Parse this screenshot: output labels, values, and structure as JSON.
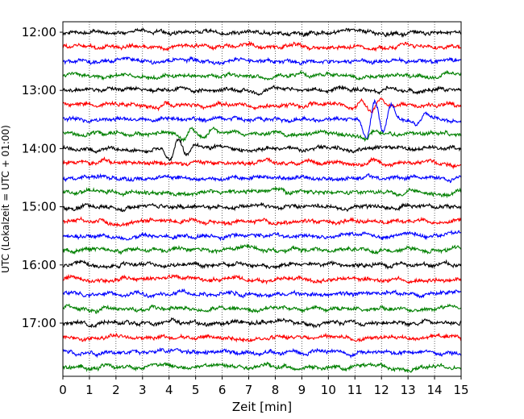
{
  "chart_data": {
    "type": "line",
    "title": "",
    "xlabel": "Zeit  [min]",
    "ylabel": "UTC (Lokalzeit = UTC + 01:00)",
    "xlim": [
      0,
      15
    ],
    "x_ticks": [
      "0",
      "1",
      "2",
      "3",
      "4",
      "5",
      "6",
      "7",
      "8",
      "9",
      "10",
      "11",
      "12",
      "13",
      "14",
      "15"
    ],
    "y_tick_labels": [
      "12:00",
      "13:00",
      "14:00",
      "15:00",
      "16:00",
      "17:00"
    ],
    "grid": "vertical-dotted",
    "trace_interval_min": 15,
    "start_time": "12:00",
    "trace_colors": [
      "#000000",
      "#ff0000",
      "#0000ff",
      "#008000"
    ],
    "traces": [
      {
        "start": "12:00",
        "color": "#000000"
      },
      {
        "start": "12:15",
        "color": "#ff0000"
      },
      {
        "start": "12:30",
        "color": "#0000ff"
      },
      {
        "start": "12:45",
        "color": "#008000"
      },
      {
        "start": "13:00",
        "color": "#000000"
      },
      {
        "start": "13:15",
        "color": "#ff0000",
        "events": [
          {
            "t": 3.7,
            "amp": 0.5
          },
          {
            "t": 11.1,
            "amp": 0.6
          },
          {
            "t": 11.8,
            "amp": 0.8
          }
        ]
      },
      {
        "start": "13:30",
        "color": "#0000ff",
        "events": [
          {
            "t": 11.6,
            "amp": 2.4
          },
          {
            "t": 12.2,
            "amp": 1.6
          },
          {
            "t": 13.5,
            "amp": 0.7
          }
        ]
      },
      {
        "start": "13:45",
        "color": "#008000",
        "events": [
          {
            "t": 4.7,
            "amp": 0.9
          },
          {
            "t": 5.5,
            "amp": 0.6
          },
          {
            "t": 11.6,
            "amp": 0.5
          }
        ]
      },
      {
        "start": "14:00",
        "color": "#000000",
        "events": [
          {
            "t": 4.2,
            "amp": 1.3
          },
          {
            "t": 4.8,
            "amp": 0.6
          }
        ]
      },
      {
        "start": "14:15",
        "color": "#ff0000",
        "events": [
          {
            "t": 11.5,
            "amp": 0.3
          }
        ]
      },
      {
        "start": "14:30",
        "color": "#0000ff"
      },
      {
        "start": "14:45",
        "color": "#008000"
      },
      {
        "start": "15:00",
        "color": "#000000"
      },
      {
        "start": "15:15",
        "color": "#ff0000"
      },
      {
        "start": "15:30",
        "color": "#0000ff"
      },
      {
        "start": "15:45",
        "color": "#008000"
      },
      {
        "start": "16:00",
        "color": "#000000"
      },
      {
        "start": "16:15",
        "color": "#ff0000"
      },
      {
        "start": "16:30",
        "color": "#0000ff"
      },
      {
        "start": "16:45",
        "color": "#008000"
      },
      {
        "start": "17:00",
        "color": "#000000"
      },
      {
        "start": "17:15",
        "color": "#ff0000"
      },
      {
        "start": "17:30",
        "color": "#0000ff"
      },
      {
        "start": "17:45",
        "color": "#008000"
      }
    ]
  }
}
